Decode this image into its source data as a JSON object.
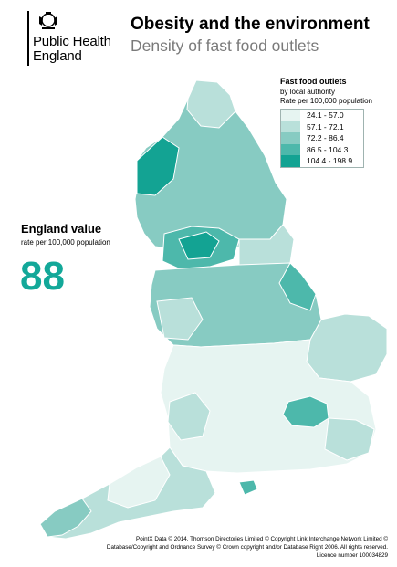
{
  "branding": {
    "org_line1": "Public Health",
    "org_line2": "England"
  },
  "header": {
    "title": "Obesity and the environment",
    "subtitle": "Density of fast food outlets"
  },
  "legend": {
    "title": "Fast food outlets",
    "subtitle1": "by local authority",
    "subtitle2": "Rate per 100,000 population",
    "classes": [
      {
        "label": "24.1 - 57.0",
        "color": "#e6f4f1"
      },
      {
        "label": "57.1 - 72.1",
        "color": "#b9e0da"
      },
      {
        "label": "72.2 - 86.4",
        "color": "#87cbc2"
      },
      {
        "label": "86.5 - 104.3",
        "color": "#4db8ab"
      },
      {
        "label": "104.4 - 198.9",
        "color": "#13a393"
      }
    ]
  },
  "england": {
    "heading": "England value",
    "sub": "rate per 100,000 population",
    "value": "88"
  },
  "credits": {
    "line1": "PointX Data © 2014, Thomson Directories Limited © Copyright Link Interchange Network Limited ©",
    "line2": "Database/Copyright and Ordnance Survey © Crown copyright and/or Database Right 2006.  All rights reserved.",
    "line3": "Licence number 100034829"
  }
}
